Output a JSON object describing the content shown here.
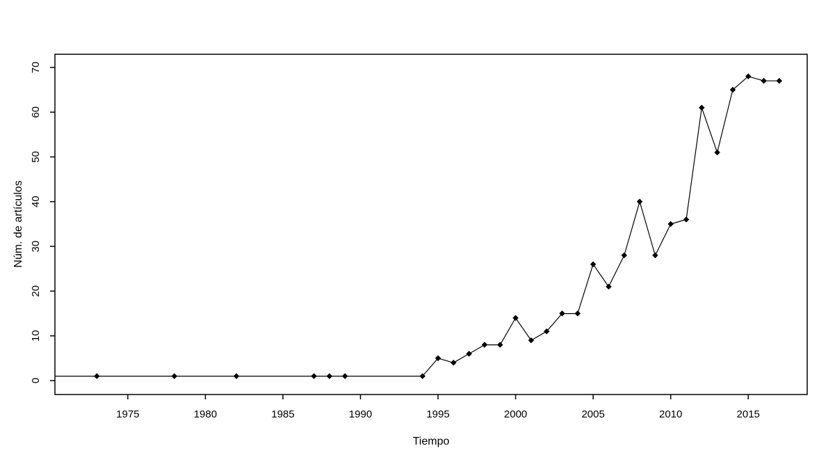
{
  "figure": {
    "background_color": "#ffffff",
    "foreground_color": "#000000"
  },
  "chart_data": {
    "type": "line",
    "title": "",
    "xlabel": "Tiempo",
    "ylabel": "Núm. de artículos",
    "x": [
      1973,
      1978,
      1982,
      1987,
      1988,
      1989,
      1994,
      1995,
      1996,
      1997,
      1998,
      1999,
      2000,
      2001,
      2002,
      2003,
      2004,
      2005,
      2006,
      2007,
      2008,
      2009,
      2010,
      2011,
      2012,
      2013,
      2014,
      2015,
      2016,
      2017
    ],
    "y": [
      1,
      1,
      1,
      1,
      1,
      1,
      1,
      5,
      4,
      6,
      8,
      8,
      14,
      9,
      11,
      15,
      15,
      26,
      21,
      28,
      40,
      28,
      35,
      36,
      61,
      51,
      65,
      68,
      67,
      67
    ],
    "xticks": [
      1975,
      1980,
      1985,
      1990,
      1995,
      2000,
      2005,
      2010,
      2015
    ],
    "yticks": [
      0,
      10,
      20,
      30,
      40,
      50,
      60,
      70
    ],
    "xlim": [
      1970.3,
      2018.8
    ],
    "ylim": [
      -3.5,
      73
    ],
    "grid": false,
    "legend": null,
    "marker": "filled-diamond",
    "line_color": "#000000",
    "marker_color": "#000000",
    "box_frame": true,
    "y_tick_labels_rotated": true,
    "line_enters_left_edge_at_value": 1
  }
}
